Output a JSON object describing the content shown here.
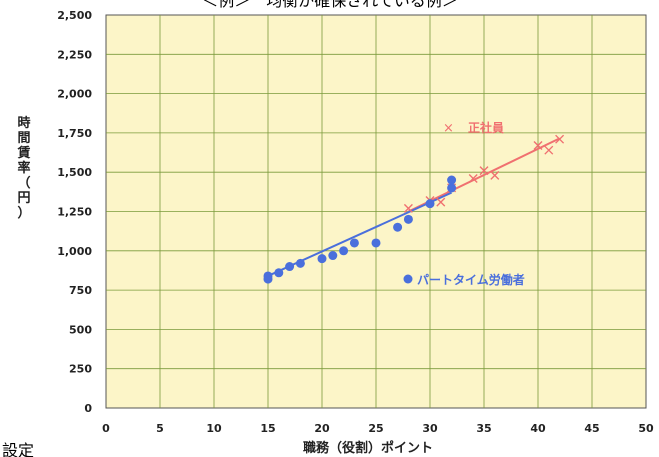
{
  "header_text": "＜例＞　均衡が確保されている例＞",
  "footer_text": "設定",
  "chart_data": {
    "type": "scatter",
    "title": "",
    "xlabel": "職務（役割）ポイント",
    "ylabel": "時間賃率（円）",
    "xlim": [
      0,
      50
    ],
    "ylim": [
      0,
      2500
    ],
    "xticks": [
      0,
      5,
      10,
      15,
      20,
      25,
      30,
      35,
      40,
      45,
      50
    ],
    "yticks": [
      0,
      250,
      500,
      750,
      1000,
      1250,
      1500,
      1750,
      2000,
      2250,
      2500
    ],
    "ytick_labels": [
      "0",
      "250",
      "500",
      "750",
      "1,000",
      "1,250",
      "1,500",
      "1,750",
      "2,000",
      "2,250",
      "2,500"
    ],
    "plot_background": "#fcf5c8",
    "grid": true,
    "grid_color": "#7a9a3a",
    "legend_placement": "inside-right",
    "series": [
      {
        "name": "正社員",
        "marker": "x",
        "color": "#f07070",
        "points": [
          [
            28,
            1270
          ],
          [
            30,
            1320
          ],
          [
            31,
            1310
          ],
          [
            32,
            1400
          ],
          [
            34,
            1460
          ],
          [
            35,
            1510
          ],
          [
            36,
            1480
          ],
          [
            40,
            1670
          ],
          [
            41,
            1640
          ],
          [
            42,
            1710
          ]
        ],
        "trend": [
          [
            28,
            1250
          ],
          [
            42,
            1715
          ]
        ]
      },
      {
        "name": "パートタイム労働者",
        "marker": "circle",
        "color": "#4a6fdc",
        "points": [
          [
            15,
            820
          ],
          [
            15,
            840
          ],
          [
            16,
            860
          ],
          [
            17,
            900
          ],
          [
            18,
            920
          ],
          [
            20,
            950
          ],
          [
            21,
            970
          ],
          [
            22,
            1000
          ],
          [
            23,
            1050
          ],
          [
            25,
            1050
          ],
          [
            27,
            1150
          ],
          [
            28,
            1200
          ],
          [
            30,
            1300
          ],
          [
            32,
            1400
          ],
          [
            32,
            1450
          ]
        ],
        "trend": [
          [
            15,
            840
          ],
          [
            32,
            1370
          ]
        ]
      }
    ]
  }
}
